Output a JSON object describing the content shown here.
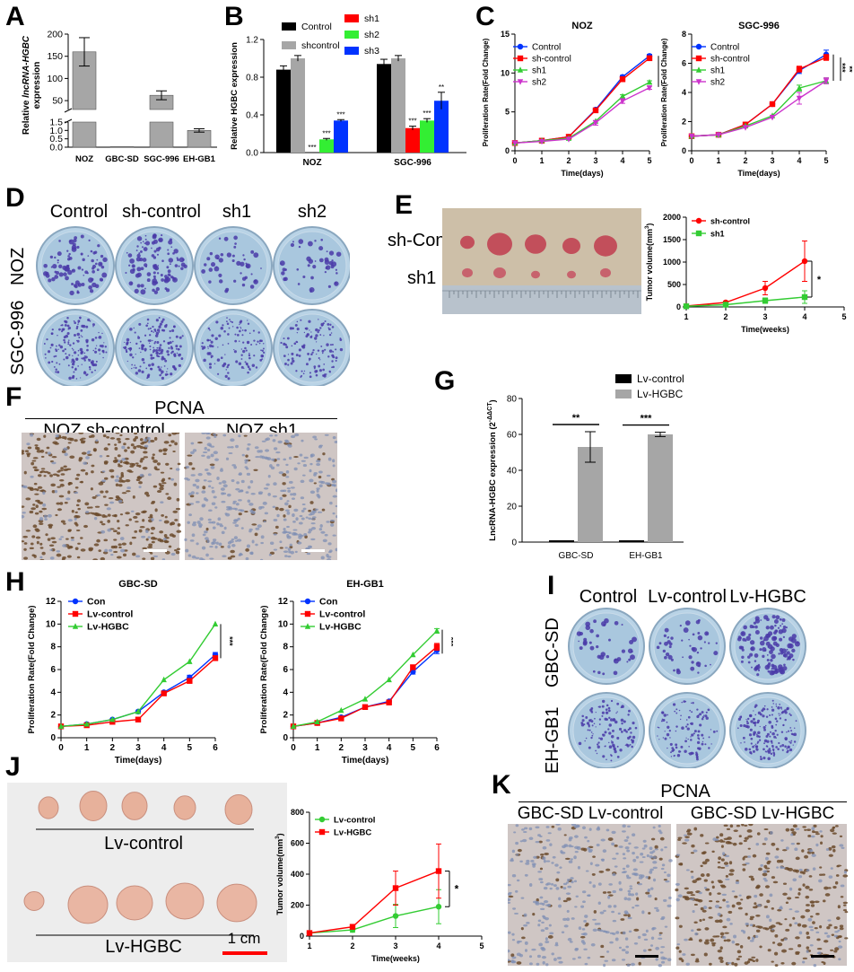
{
  "panels": {
    "a": {
      "letter": "A"
    },
    "b": {
      "letter": "B"
    },
    "c": {
      "letter": "C"
    },
    "d": {
      "letter": "D",
      "columns": [
        "Control",
        "sh-control",
        "sh1",
        "sh2"
      ],
      "rows": [
        "NOZ",
        "SGC-996"
      ]
    },
    "e": {
      "letter": "E",
      "row_labels": [
        "sh-Con",
        "sh1"
      ]
    },
    "f": {
      "letter": "F",
      "header": "PCNA",
      "labels": [
        "NOZ sh-control",
        "NOZ sh1"
      ]
    },
    "g": {
      "letter": "G"
    },
    "h": {
      "letter": "H"
    },
    "i": {
      "letter": "I",
      "columns": [
        "Control",
        "Lv-control",
        "Lv-HGBC"
      ],
      "rows": [
        "GBC-SD",
        "EH-GB1"
      ]
    },
    "j": {
      "letter": "J",
      "labels": [
        "Lv-control",
        "Lv-HGBC"
      ],
      "scale": "1 cm"
    },
    "k": {
      "letter": "K",
      "header": "PCNA",
      "labels": [
        "GBC-SD Lv-control",
        "GBC-SD Lv-HGBC"
      ]
    }
  },
  "chart_data": [
    {
      "id": "A",
      "type": "bar",
      "categories": [
        "NOZ",
        "GBC-SD",
        "SGC-996",
        "EH-GB1"
      ],
      "values": [
        160,
        0.01,
        62,
        1.0
      ],
      "errors": [
        32,
        0.005,
        10,
        0.1
      ],
      "ylabel": "Relative lncRNA-HGBC expression",
      "ylabel_plain": "Relative ",
      "ylabel_italic": "lncRNA-HGBC",
      "ylabel_line2": "expression",
      "axis_break": true,
      "upper_ticks": [
        "50",
        "100",
        "150",
        "200"
      ],
      "lower_ticks": [
        "0.0",
        "0.5",
        "1.0",
        "1.5"
      ],
      "colors": {
        "bar": "#a6a6a6"
      }
    },
    {
      "id": "B",
      "type": "bar",
      "categories": [
        "NOZ",
        "SGC-996"
      ],
      "series": [
        {
          "name": "Control",
          "color": "#000000",
          "values": [
            0.88,
            0.94
          ],
          "errors": [
            0.04,
            0.05
          ]
        },
        {
          "name": "shcontrol",
          "color": "#a6a6a6",
          "values": [
            1.0,
            1.0
          ],
          "errors": [
            0.03,
            0.03
          ]
        },
        {
          "name": "sh1",
          "color": "#ff0000",
          "values": [
            0.0,
            0.26
          ],
          "errors": [
            0.0,
            0.02
          ],
          "sig": [
            "***",
            "***"
          ]
        },
        {
          "name": "sh2",
          "color": "#33ee33",
          "values": [
            0.14,
            0.34
          ],
          "errors": [
            0.01,
            0.02
          ],
          "sig": [
            "***",
            "***"
          ]
        },
        {
          "name": "sh3",
          "color": "#0033ff",
          "values": [
            0.34,
            0.55
          ],
          "errors": [
            0.01,
            0.09
          ],
          "sig": [
            "***",
            "**"
          ]
        }
      ],
      "ylabel": "Relative HGBC expression",
      "ylim": [
        0,
        1.2
      ],
      "yticks": [
        "0.0",
        "0.4",
        "0.8",
        "1.2"
      ]
    },
    {
      "id": "C1",
      "type": "line",
      "title": "NOZ",
      "x": [
        0,
        1,
        2,
        3,
        4,
        5
      ],
      "series": [
        {
          "name": "Control",
          "color": "#0033ff",
          "marker": "circle",
          "values": [
            1.0,
            1.3,
            1.8,
            5.3,
            9.5,
            12.2
          ],
          "errors": [
            0,
            0,
            0,
            0,
            0.2,
            0.2
          ]
        },
        {
          "name": "sh-control",
          "color": "#ff0000",
          "marker": "square",
          "values": [
            1.0,
            1.3,
            1.8,
            5.2,
            9.2,
            11.9
          ],
          "errors": [
            0,
            0,
            0,
            0,
            0.3,
            0.2
          ]
        },
        {
          "name": "sh1",
          "color": "#33cc33",
          "marker": "triangle",
          "values": [
            1.0,
            1.3,
            1.6,
            3.8,
            7.0,
            8.8
          ],
          "errors": [
            0,
            0,
            0,
            0,
            0.2,
            0.2
          ]
        },
        {
          "name": "sh2",
          "color": "#cc33cc",
          "marker": "triangle-down",
          "values": [
            1.0,
            1.2,
            1.5,
            3.6,
            6.4,
            8.1
          ],
          "errors": [
            0,
            0,
            0,
            0.3,
            0.3,
            0.2
          ]
        }
      ],
      "xlabel": "Time(days)",
      "ylabel": "Proliferation Rate(Fold Change)",
      "ylim": [
        0,
        15
      ],
      "yticks": [
        "0",
        "5",
        "10",
        "15"
      ],
      "xticks": [
        "0",
        "1",
        "2",
        "3",
        "4",
        "5"
      ],
      "sig": "***"
    },
    {
      "id": "C2",
      "type": "line",
      "title": "SGC-996",
      "x": [
        0,
        1,
        2,
        3,
        4,
        5
      ],
      "series": [
        {
          "name": "Control",
          "color": "#0033ff",
          "marker": "circle",
          "values": [
            1.0,
            1.1,
            1.8,
            3.2,
            5.5,
            6.6
          ],
          "errors": [
            0,
            0,
            0,
            0,
            0.2,
            0.3
          ]
        },
        {
          "name": "sh-control",
          "color": "#ff0000",
          "marker": "square",
          "values": [
            1.0,
            1.1,
            1.8,
            3.2,
            5.6,
            6.4
          ],
          "errors": [
            0,
            0,
            0,
            0,
            0.2,
            0.2
          ]
        },
        {
          "name": "sh1",
          "color": "#33cc33",
          "marker": "triangle",
          "values": [
            1.0,
            1.1,
            1.7,
            2.4,
            4.3,
            4.8
          ],
          "errors": [
            0,
            0,
            0,
            0,
            0.2,
            0.2
          ]
        },
        {
          "name": "sh2",
          "color": "#cc33cc",
          "marker": "triangle-down",
          "values": [
            1.0,
            1.1,
            1.6,
            2.3,
            3.6,
            4.8
          ],
          "errors": [
            0,
            0,
            0,
            0,
            0.4,
            0.2
          ]
        }
      ],
      "xlabel": "Time(days)",
      "ylabel": "Proliferation Rate(Fold Change)",
      "ylim": [
        0,
        8
      ],
      "yticks": [
        "0",
        "2",
        "4",
        "6",
        "8"
      ],
      "xticks": [
        "0",
        "1",
        "2",
        "3",
        "4",
        "5"
      ],
      "sig": "***"
    },
    {
      "id": "E",
      "type": "line",
      "x": [
        1,
        2,
        3,
        4
      ],
      "series": [
        {
          "name": "sh-control",
          "color": "#ff0000",
          "marker": "circle",
          "values": [
            20,
            100,
            420,
            1020
          ],
          "errors": [
            10,
            30,
            150,
            450
          ]
        },
        {
          "name": "sh1",
          "color": "#33cc33",
          "marker": "square",
          "values": [
            15,
            50,
            140,
            220
          ],
          "errors": [
            10,
            20,
            60,
            140
          ]
        }
      ],
      "xlabel": "Time(weeks)",
      "ylabel": "Tumor volume(mm3)",
      "ylim": [
        0,
        2000
      ],
      "xlim": [
        1,
        5
      ],
      "yticks": [
        "0",
        "500",
        "1000",
        "1500",
        "2000"
      ],
      "xticks": [
        "1",
        "2",
        "3",
        "4",
        "5"
      ],
      "sig": "*"
    },
    {
      "id": "G",
      "type": "bar",
      "categories": [
        "GBC-SD",
        "EH-GB1"
      ],
      "series": [
        {
          "name": "Lv-control",
          "color": "#000000",
          "values": [
            1,
            1
          ],
          "errors": [
            0,
            0
          ]
        },
        {
          "name": "Lv-HGBC",
          "color": "#a6a6a6",
          "values": [
            53,
            60
          ],
          "errors": [
            8.5,
            1.2
          ]
        }
      ],
      "sig": [
        "**",
        "***"
      ],
      "ylabel": "LncRNA-HGBC expression (2-ΔΔCT)",
      "ylim": [
        0,
        80
      ],
      "yticks": [
        "0",
        "20",
        "40",
        "60",
        "80"
      ]
    },
    {
      "id": "H1",
      "type": "line",
      "title": "GBC-SD",
      "x": [
        0,
        1,
        2,
        3,
        4,
        5,
        6
      ],
      "series": [
        {
          "name": "Con",
          "color": "#0033ff",
          "marker": "circle",
          "values": [
            1.0,
            1.2,
            1.6,
            2.3,
            4.0,
            5.3,
            7.3
          ],
          "errors": [
            0,
            0,
            0,
            0,
            0.1,
            0.2,
            0.2
          ]
        },
        {
          "name": "Lv-control",
          "color": "#ff0000",
          "marker": "square",
          "values": [
            1.0,
            1.1,
            1.4,
            1.6,
            3.9,
            5.0,
            7.0
          ],
          "errors": [
            0,
            0,
            0,
            0,
            0.1,
            0.2,
            0.2
          ]
        },
        {
          "name": "Lv-HGBC",
          "color": "#33cc33",
          "marker": "triangle",
          "values": [
            1.0,
            1.2,
            1.6,
            2.3,
            5.1,
            6.7,
            10.0
          ],
          "errors": [
            0,
            0,
            0,
            0,
            0,
            0,
            0
          ]
        }
      ],
      "xlabel": "Time(days)",
      "ylabel": "Proliferation Rate(Fold Change)",
      "ylim": [
        0,
        12
      ],
      "yticks": [
        "0",
        "2",
        "4",
        "6",
        "8",
        "10",
        "12"
      ],
      "xticks": [
        "0",
        "1",
        "2",
        "3",
        "4",
        "5",
        "6"
      ],
      "sig": "***"
    },
    {
      "id": "H2",
      "type": "line",
      "title": "EH-GB1",
      "x": [
        0,
        1,
        2,
        3,
        4,
        5,
        6
      ],
      "series": [
        {
          "name": "Con",
          "color": "#0033ff",
          "marker": "circle",
          "values": [
            1.0,
            1.3,
            1.8,
            2.7,
            3.2,
            5.8,
            7.7
          ],
          "errors": [
            0,
            0,
            0,
            0,
            0.1,
            0.2,
            0.3
          ]
        },
        {
          "name": "Lv-control",
          "color": "#ff0000",
          "marker": "square",
          "values": [
            1.0,
            1.3,
            1.7,
            2.7,
            3.1,
            6.2,
            8.0
          ],
          "errors": [
            0,
            0,
            0,
            0,
            0.1,
            0.2,
            0.3
          ]
        },
        {
          "name": "Lv-HGBC",
          "color": "#33cc33",
          "marker": "triangle",
          "values": [
            1.0,
            1.4,
            2.4,
            3.4,
            5.1,
            7.3,
            9.4
          ],
          "errors": [
            0,
            0,
            0,
            0,
            0,
            0,
            0.2
          ]
        }
      ],
      "xlabel": "Time(days)",
      "ylabel": "Proliferation Rate(Fold Change)",
      "ylim": [
        0,
        12
      ],
      "yticks": [
        "0",
        "2",
        "4",
        "6",
        "8",
        "10",
        "12"
      ],
      "xticks": [
        "0",
        "1",
        "2",
        "3",
        "4",
        "5",
        "6"
      ],
      "sig": "***"
    },
    {
      "id": "J",
      "type": "line",
      "x": [
        1,
        2,
        3,
        4
      ],
      "series": [
        {
          "name": "Lv-control",
          "color": "#33cc33",
          "marker": "circle",
          "values": [
            20,
            40,
            130,
            190
          ],
          "errors": [
            5,
            15,
            75,
            110
          ]
        },
        {
          "name": "Lv-HGBC",
          "color": "#ff0000",
          "marker": "square",
          "values": [
            20,
            60,
            310,
            420
          ],
          "errors": [
            5,
            15,
            110,
            175
          ]
        }
      ],
      "xlabel": "Time(weeks)",
      "ylabel": "Tumor volume(mm3)",
      "ylim": [
        0,
        800
      ],
      "xlim": [
        1,
        5
      ],
      "yticks": [
        "0",
        "200",
        "400",
        "600",
        "800"
      ],
      "xticks": [
        "1",
        "2",
        "3",
        "4",
        "5"
      ],
      "sig": "*"
    }
  ]
}
